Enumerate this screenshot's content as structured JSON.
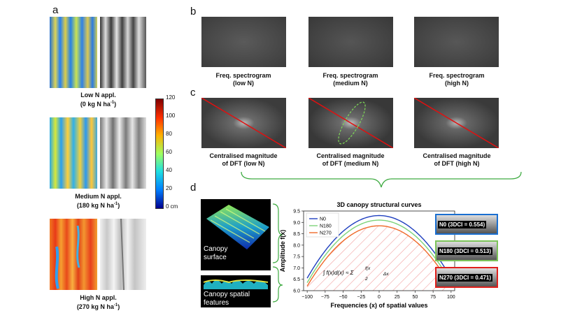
{
  "panels": {
    "a": "a",
    "b": "b",
    "c": "c",
    "d": "d"
  },
  "panel_a": {
    "rows": [
      {
        "line1": "Low N appl.",
        "line2": "(0 kg N ha",
        "sup": "-1",
        "tail": ")"
      },
      {
        "line1": "Medium N appl.",
        "line2": "(180 kg N ha",
        "sup": "-1",
        "tail": ")"
      },
      {
        "line1": "High N appl.",
        "line2": "(270 kg N ha",
        "sup": "-1",
        "tail": ")"
      }
    ],
    "colorbar": {
      "ticks": [
        "120",
        "100",
        "80",
        "60",
        "40",
        "20",
        "0 cm"
      ],
      "colors": [
        "#7f0000",
        "#ff3000",
        "#ffb000",
        "#a0ff60",
        "#20e0e0",
        "#0080ff",
        "#00008f"
      ]
    }
  },
  "panel_b": {
    "captions": [
      {
        "line1": "Freq. spectrogram",
        "line2": "(low N)"
      },
      {
        "line1": "Freq. spectrogram",
        "line2": "(medium N)"
      },
      {
        "line1": "Freq. spectrogram",
        "line2": "(high N)"
      }
    ]
  },
  "panel_c": {
    "captions": [
      {
        "line1": "Centralised magnitude",
        "line2": "of DFT (low N)"
      },
      {
        "line1": "Centralised magnitude",
        "line2": "of DFT (medium N)"
      },
      {
        "line1": "Centralised magnitude",
        "line2": "of DFT (high N)"
      }
    ],
    "line_color": "#e01010",
    "ellipse_color": "#7ed957"
  },
  "panel_d": {
    "canopy_surface_label": [
      "Canopy",
      "surface"
    ],
    "canopy_features_label": [
      "Canopy spatial",
      "features"
    ],
    "thumbnails": [
      {
        "label": "N0 (3DCI = 0.554)",
        "border": "#1a6fd1"
      },
      {
        "label": "N180 (3DCI = 0.513)",
        "border": "#7cc35a"
      },
      {
        "label": "N270 (3DCI = 0.471)",
        "border": "#e0201c"
      }
    ]
  },
  "chart_data": {
    "type": "line",
    "title": "3D canopy structural curves",
    "xlabel": "Frequencies (x) of spatial values",
    "ylabel": "Amplitude f(x)",
    "xlim": [
      -105,
      105
    ],
    "ylim": [
      6.0,
      9.5
    ],
    "xticks": [
      -100,
      -75,
      -50,
      -25,
      0,
      25,
      50,
      75,
      100
    ],
    "xtick_labels": [
      "−100",
      "−75",
      "−50",
      "−25",
      "0",
      "25",
      "50",
      "75",
      "100"
    ],
    "yticks": [
      6.0,
      6.5,
      7.0,
      7.5,
      8.0,
      8.5,
      9.0,
      9.5
    ],
    "ytick_labels": [
      "6.0",
      "6.5",
      "7.0",
      "7.5",
      "8.0",
      "8.5",
      "9.0",
      "9.5"
    ],
    "legend_position": "top-left",
    "series": [
      {
        "name": "N0",
        "color": "#1f3fbf",
        "peak": 9.3,
        "edge": 6.55
      },
      {
        "name": "N180",
        "color": "#7cd37a",
        "peak": 9.1,
        "edge": 6.35
      },
      {
        "name": "N270",
        "color": "#ef6a2a",
        "peak": 8.85,
        "edge": 6.2
      }
    ],
    "hatch_color": "#f2a0a0"
  }
}
